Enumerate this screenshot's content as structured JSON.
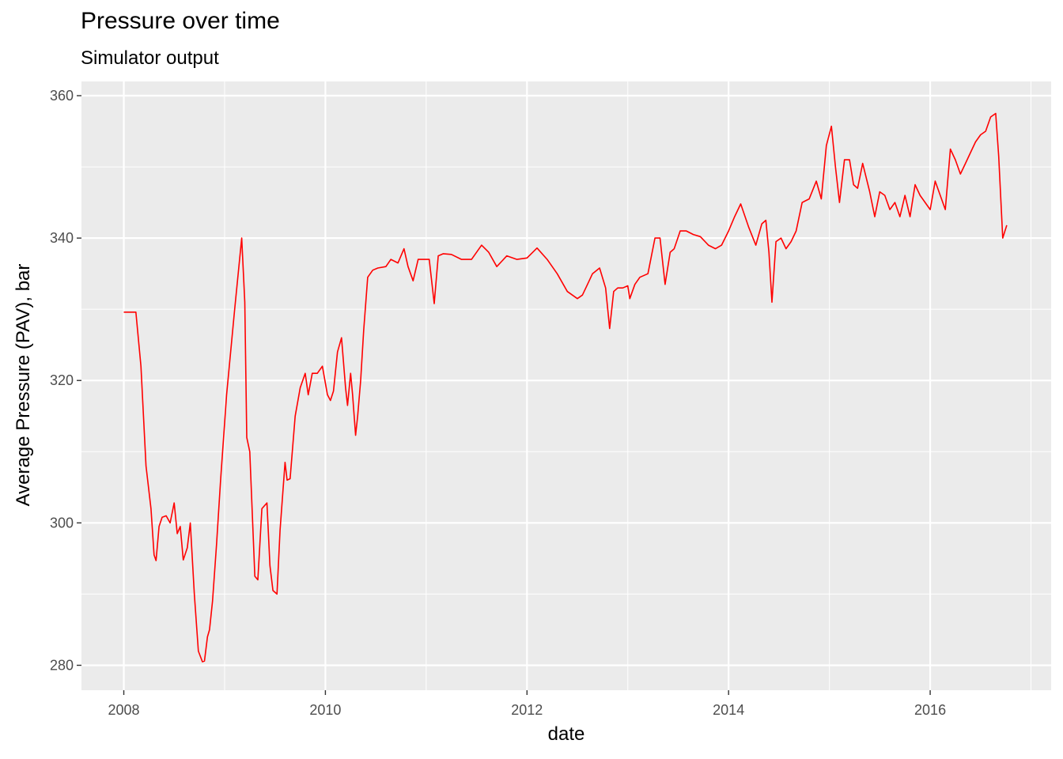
{
  "chart_data": {
    "type": "line",
    "title": "Pressure over time",
    "subtitle": "Simulator output",
    "xlabel": "date",
    "ylabel": "Average Pressure (PAV), bar",
    "xlim": [
      2007.58,
      2017.2
    ],
    "ylim": [
      276.5,
      362
    ],
    "x_ticks": [
      2008,
      2010,
      2012,
      2014,
      2016
    ],
    "x_tick_labels": [
      "2008",
      "2010",
      "2012",
      "2014",
      "2016"
    ],
    "y_ticks": [
      280,
      300,
      320,
      340,
      360
    ],
    "y_tick_labels": [
      "280",
      "300",
      "320",
      "340",
      "360"
    ],
    "grid": true,
    "legend": "none",
    "series": [
      {
        "name": "PAV",
        "color": "#ff0000",
        "x": [
          2008.0,
          2008.12,
          2008.17,
          2008.22,
          2008.27,
          2008.3,
          2008.32,
          2008.35,
          2008.38,
          2008.42,
          2008.46,
          2008.5,
          2008.53,
          2008.56,
          2008.59,
          2008.63,
          2008.66,
          2008.7,
          2008.74,
          2008.78,
          2008.8,
          2008.83,
          2008.85,
          2008.88,
          2008.92,
          2008.96,
          2009.02,
          2009.1,
          2009.17,
          2009.2,
          2009.22,
          2009.25,
          2009.3,
          2009.33,
          2009.37,
          2009.42,
          2009.45,
          2009.48,
          2009.52,
          2009.55,
          2009.6,
          2009.62,
          2009.65,
          2009.7,
          2009.75,
          2009.8,
          2009.83,
          2009.87,
          2009.92,
          2009.97,
          2010.02,
          2010.05,
          2010.08,
          2010.12,
          2010.16,
          2010.2,
          2010.22,
          2010.25,
          2010.27,
          2010.3,
          2010.32,
          2010.35,
          2010.38,
          2010.42,
          2010.47,
          2010.52,
          2010.6,
          2010.65,
          2010.72,
          2010.78,
          2010.82,
          2010.87,
          2010.92,
          2010.97,
          2011.03,
          2011.08,
          2011.12,
          2011.17,
          2011.25,
          2011.35,
          2011.45,
          2011.55,
          2011.62,
          2011.7,
          2011.8,
          2011.9,
          2012.0,
          2012.1,
          2012.2,
          2012.3,
          2012.4,
          2012.5,
          2012.55,
          2012.6,
          2012.65,
          2012.72,
          2012.78,
          2012.82,
          2012.86,
          2012.9,
          2012.95,
          2013.0,
          2013.02,
          2013.07,
          2013.12,
          2013.2,
          2013.27,
          2013.32,
          2013.37,
          2013.42,
          2013.46,
          2013.52,
          2013.58,
          2013.65,
          2013.72,
          2013.8,
          2013.87,
          2013.93,
          2014.0,
          2014.06,
          2014.12,
          2014.2,
          2014.27,
          2014.33,
          2014.37,
          2014.4,
          2014.43,
          2014.47,
          2014.52,
          2014.57,
          2014.62,
          2014.67,
          2014.73,
          2014.8,
          2014.87,
          2014.92,
          2014.97,
          2015.02,
          2015.06,
          2015.1,
          2015.15,
          2015.2,
          2015.24,
          2015.28,
          2015.33,
          2015.4,
          2015.45,
          2015.5,
          2015.55,
          2015.6,
          2015.65,
          2015.7,
          2015.75,
          2015.8,
          2015.85,
          2015.9,
          2015.95,
          2016.0,
          2016.05,
          2016.1,
          2016.15,
          2016.2,
          2016.25,
          2016.3,
          2016.35,
          2016.4,
          2016.45,
          2016.5,
          2016.55,
          2016.6,
          2016.65,
          2016.68,
          2016.72,
          2016.76
        ],
        "values": [
          329.6,
          329.6,
          322.0,
          308.0,
          302.0,
          295.5,
          294.7,
          299.5,
          300.8,
          301.0,
          300.0,
          302.8,
          298.5,
          299.5,
          294.8,
          296.5,
          300.0,
          290.0,
          282.0,
          280.5,
          280.6,
          284.0,
          285.0,
          289.0,
          297.0,
          306.0,
          318.0,
          330.0,
          340.0,
          331.0,
          312.0,
          310.0,
          292.5,
          292.0,
          302.0,
          302.8,
          294.0,
          290.5,
          290.0,
          299.0,
          308.5,
          306.0,
          306.2,
          315.0,
          319.0,
          321.0,
          318.0,
          321.0,
          321.0,
          322.0,
          318.0,
          317.2,
          318.5,
          324.0,
          326.0,
          319.0,
          316.5,
          321.0,
          318.0,
          312.3,
          315.0,
          320.0,
          327.0,
          334.5,
          335.5,
          335.8,
          336.0,
          337.0,
          336.5,
          338.5,
          336.0,
          334.0,
          337.0,
          337.0,
          337.0,
          330.8,
          337.5,
          337.8,
          337.7,
          337.0,
          337.0,
          339.0,
          338.0,
          336.0,
          337.5,
          337.0,
          337.2,
          338.6,
          337.0,
          335.0,
          332.5,
          331.5,
          332.0,
          333.5,
          335.0,
          335.8,
          333.0,
          327.3,
          332.5,
          333.0,
          333.0,
          333.3,
          331.5,
          333.5,
          334.5,
          335.0,
          340.0,
          340.0,
          333.5,
          338.0,
          338.5,
          341.0,
          341.0,
          340.5,
          340.2,
          339.0,
          338.5,
          339.0,
          341.0,
          343.0,
          344.8,
          341.5,
          339.0,
          342.0,
          342.5,
          338.0,
          331.0,
          339.5,
          340.0,
          338.5,
          339.5,
          341.0,
          345.0,
          345.5,
          348.0,
          345.5,
          353.0,
          355.7,
          350.0,
          345.0,
          351.0,
          351.0,
          347.5,
          347.0,
          350.5,
          346.5,
          343.0,
          346.5,
          346.0,
          344.0,
          345.0,
          343.0,
          346.0,
          343.0,
          347.5,
          346.0,
          345.0,
          344.0,
          348.0,
          346.0,
          344.0,
          352.5,
          351.0,
          349.0,
          350.5,
          352.0,
          353.5,
          354.5,
          355.0,
          357.0,
          357.5,
          351.5,
          340.0,
          341.8
        ]
      }
    ]
  }
}
